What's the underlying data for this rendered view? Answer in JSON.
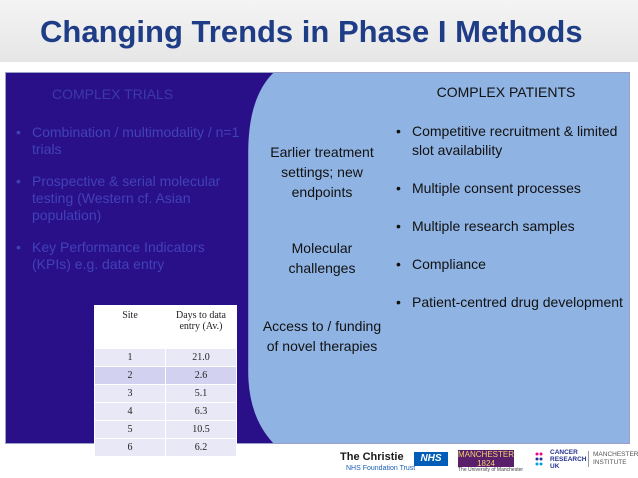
{
  "title": "Changing Trends in Phase I Methods",
  "left": {
    "heading": "COMPLEX TRIALS",
    "items": [
      "Combination / multimodality / n=1 trials",
      "Prospective & serial molecular testing (Western cf. Asian population)",
      "Key Performance Indicators (KPIs) e.g. data entry"
    ],
    "table": {
      "headers": [
        "Site",
        "Days to data entry (Av.)"
      ],
      "rows": [
        [
          "1",
          "21.0"
        ],
        [
          "2",
          "2.6"
        ],
        [
          "3",
          "5.1"
        ],
        [
          "4",
          "6.3"
        ],
        [
          "5",
          "10.5"
        ],
        [
          "6",
          "6.2"
        ]
      ]
    }
  },
  "middle": {
    "items": [
      "Earlier treatment settings; new endpoints",
      "Molecular challenges",
      "Access to / funding of novel therapies"
    ]
  },
  "right": {
    "heading": "COMPLEX PATIENTS",
    "items": [
      "Competitive recruitment & limited slot availability",
      "Multiple consent processes",
      "Multiple research samples",
      "Compliance",
      "Patient-centred drug development"
    ]
  },
  "bullet": "•",
  "logos": {
    "christie": "The Christie",
    "christie_sub": "NHS Foundation Trust",
    "nhs": "NHS",
    "manchester": "MANCHESTER 1824",
    "manchester_sub": "The University of Manchester",
    "cru": "CANCER RESEARCH UK",
    "mi": "MANCHESTER INSTITUTE"
  },
  "colors": {
    "title": "#1f3c87",
    "left_panel": "#2a1088",
    "right_panel": "#8fb3e3",
    "left_text": "#4141b8"
  }
}
